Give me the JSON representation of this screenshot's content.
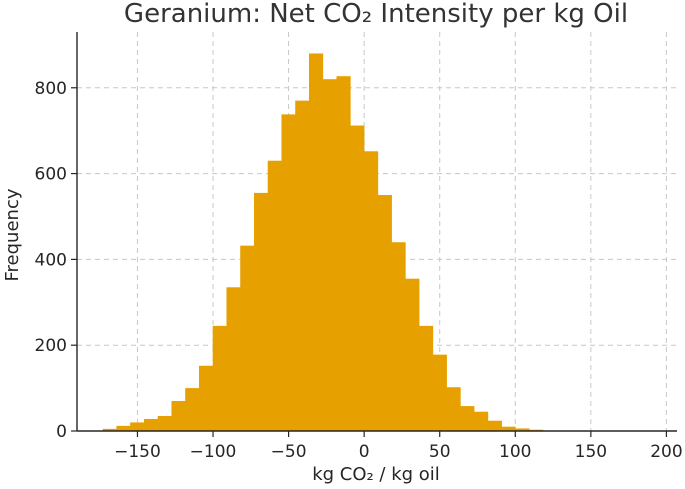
{
  "chart_data": {
    "type": "bar",
    "title": "Geranium: Net CO₂ Intensity per kg Oil",
    "xlabel": "kg CO₂ / kg oil",
    "ylabel": "Frequency",
    "xlim": [
      -190,
      207
    ],
    "ylim": [
      0,
      930
    ],
    "x_ticks": [
      -150,
      -100,
      -50,
      0,
      50,
      100,
      150,
      200
    ],
    "x_tick_labels": [
      "−150",
      "−100",
      "−50",
      "0",
      "50",
      "100",
      "150",
      "200"
    ],
    "y_ticks": [
      0,
      200,
      400,
      600,
      800
    ],
    "y_tick_labels": [
      "0",
      "200",
      "400",
      "600",
      "800"
    ],
    "grid": true,
    "color": "#e6a000",
    "bin_width": 9.1,
    "bin_start": -173.0,
    "bins": [
      {
        "x": -173.0,
        "count": 5
      },
      {
        "x": -163.9,
        "count": 12
      },
      {
        "x": -154.8,
        "count": 20
      },
      {
        "x": -145.7,
        "count": 28
      },
      {
        "x": -136.6,
        "count": 35
      },
      {
        "x": -127.5,
        "count": 70
      },
      {
        "x": -118.4,
        "count": 100
      },
      {
        "x": -109.3,
        "count": 152
      },
      {
        "x": -100.2,
        "count": 245
      },
      {
        "x": -91.1,
        "count": 335
      },
      {
        "x": -82.0,
        "count": 432
      },
      {
        "x": -72.9,
        "count": 555
      },
      {
        "x": -63.8,
        "count": 630
      },
      {
        "x": -54.7,
        "count": 738
      },
      {
        "x": -45.6,
        "count": 770
      },
      {
        "x": -36.5,
        "count": 880
      },
      {
        "x": -27.4,
        "count": 820
      },
      {
        "x": -18.3,
        "count": 827
      },
      {
        "x": -9.2,
        "count": 712
      },
      {
        "x": -0.1,
        "count": 652
      },
      {
        "x": 9.0,
        "count": 550
      },
      {
        "x": 18.1,
        "count": 440
      },
      {
        "x": 27.2,
        "count": 355
      },
      {
        "x": 36.3,
        "count": 245
      },
      {
        "x": 45.4,
        "count": 178
      },
      {
        "x": 54.5,
        "count": 102
      },
      {
        "x": 63.6,
        "count": 58
      },
      {
        "x": 72.7,
        "count": 45
      },
      {
        "x": 81.8,
        "count": 24
      },
      {
        "x": 90.9,
        "count": 10
      },
      {
        "x": 100.0,
        "count": 6
      },
      {
        "x": 109.1,
        "count": 3
      }
    ]
  }
}
